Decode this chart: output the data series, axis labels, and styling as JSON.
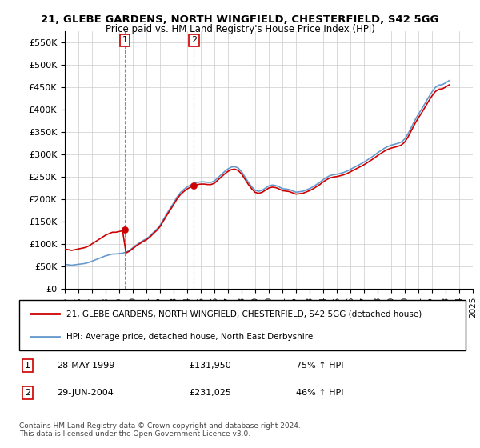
{
  "title": "21, GLEBE GARDENS, NORTH WINGFIELD, CHESTERFIELD, S42 5GG",
  "subtitle": "Price paid vs. HM Land Registry's House Price Index (HPI)",
  "ylim": [
    0,
    575000
  ],
  "yticks": [
    0,
    50000,
    100000,
    150000,
    200000,
    250000,
    300000,
    350000,
    400000,
    450000,
    500000,
    550000
  ],
  "ytick_labels": [
    "£0",
    "£50K",
    "£100K",
    "£150K",
    "£200K",
    "£250K",
    "£300K",
    "£350K",
    "£400K",
    "£450K",
    "£500K",
    "£550K"
  ],
  "sale1_year": 1999.41,
  "sale1_price": 131950,
  "sale1_date": "28-MAY-1999",
  "sale1_hpi": "75% ↑ HPI",
  "sale2_year": 2004.49,
  "sale2_price": 231025,
  "sale2_date": "29-JUN-2004",
  "sale2_hpi": "46% ↑ HPI",
  "red_color": "#cc0000",
  "blue_color": "#6699cc",
  "legend_label_red": "21, GLEBE GARDENS, NORTH WINGFIELD, CHESTERFIELD, S42 5GG (detached house)",
  "legend_label_blue": "HPI: Average price, detached house, North East Derbyshire",
  "footer": "Contains HM Land Registry data © Crown copyright and database right 2024.\nThis data is licensed under the Open Government Licence v3.0.",
  "hpi_years": [
    1995.0,
    1995.25,
    1995.5,
    1995.75,
    1996.0,
    1996.25,
    1996.5,
    1996.75,
    1997.0,
    1997.25,
    1997.5,
    1997.75,
    1998.0,
    1998.25,
    1998.5,
    1998.75,
    1999.0,
    1999.25,
    1999.5,
    1999.75,
    2000.0,
    2000.25,
    2000.5,
    2000.75,
    2001.0,
    2001.25,
    2001.5,
    2001.75,
    2002.0,
    2002.25,
    2002.5,
    2002.75,
    2003.0,
    2003.25,
    2003.5,
    2003.75,
    2004.0,
    2004.25,
    2004.5,
    2004.75,
    2005.0,
    2005.25,
    2005.5,
    2005.75,
    2006.0,
    2006.25,
    2006.5,
    2006.75,
    2007.0,
    2007.25,
    2007.5,
    2007.75,
    2008.0,
    2008.25,
    2008.5,
    2008.75,
    2009.0,
    2009.25,
    2009.5,
    2009.75,
    2010.0,
    2010.25,
    2010.5,
    2010.75,
    2011.0,
    2011.25,
    2011.5,
    2011.75,
    2012.0,
    2012.25,
    2012.5,
    2012.75,
    2013.0,
    2013.25,
    2013.5,
    2013.75,
    2014.0,
    2014.25,
    2014.5,
    2014.75,
    2015.0,
    2015.25,
    2015.5,
    2015.75,
    2016.0,
    2016.25,
    2016.5,
    2016.75,
    2017.0,
    2017.25,
    2017.5,
    2017.75,
    2018.0,
    2018.25,
    2018.5,
    2018.75,
    2019.0,
    2019.25,
    2019.5,
    2019.75,
    2020.0,
    2020.25,
    2020.5,
    2020.75,
    2021.0,
    2021.25,
    2021.5,
    2021.75,
    2022.0,
    2022.25,
    2022.5,
    2022.75,
    2023.0,
    2023.25,
    2023.5,
    2023.75,
    2024.0,
    2024.25
  ],
  "hpi_values": [
    55000,
    54000,
    53000,
    54000,
    55000,
    56000,
    57000,
    59000,
    62000,
    65000,
    68000,
    71000,
    74000,
    76000,
    78000,
    78000,
    79000,
    80000,
    82000,
    86000,
    92000,
    98000,
    103000,
    108000,
    112000,
    118000,
    126000,
    133000,
    142000,
    155000,
    168000,
    180000,
    192000,
    205000,
    215000,
    222000,
    228000,
    232000,
    236000,
    238000,
    239000,
    239000,
    238000,
    238000,
    241000,
    248000,
    255000,
    262000,
    268000,
    272000,
    273000,
    270000,
    262000,
    250000,
    238000,
    228000,
    220000,
    218000,
    220000,
    225000,
    230000,
    232000,
    231000,
    228000,
    224000,
    223000,
    222000,
    219000,
    216000,
    217000,
    218000,
    221000,
    224000,
    228000,
    233000,
    238000,
    244000,
    249000,
    253000,
    255000,
    256000,
    258000,
    260000,
    263000,
    267000,
    271000,
    275000,
    279000,
    283000,
    288000,
    293000,
    298000,
    304000,
    309000,
    314000,
    318000,
    321000,
    323000,
    325000,
    328000,
    335000,
    347000,
    362000,
    377000,
    390000,
    402000,
    415000,
    428000,
    440000,
    450000,
    455000,
    456000,
    460000,
    465000
  ],
  "xmin": 1995.0,
  "xmax": 2025.0,
  "xtick_years": [
    1995,
    1996,
    1997,
    1998,
    1999,
    2000,
    2001,
    2002,
    2003,
    2004,
    2005,
    2006,
    2007,
    2008,
    2009,
    2010,
    2011,
    2012,
    2013,
    2014,
    2015,
    2016,
    2017,
    2018,
    2019,
    2020,
    2021,
    2022,
    2023,
    2024,
    2025
  ]
}
